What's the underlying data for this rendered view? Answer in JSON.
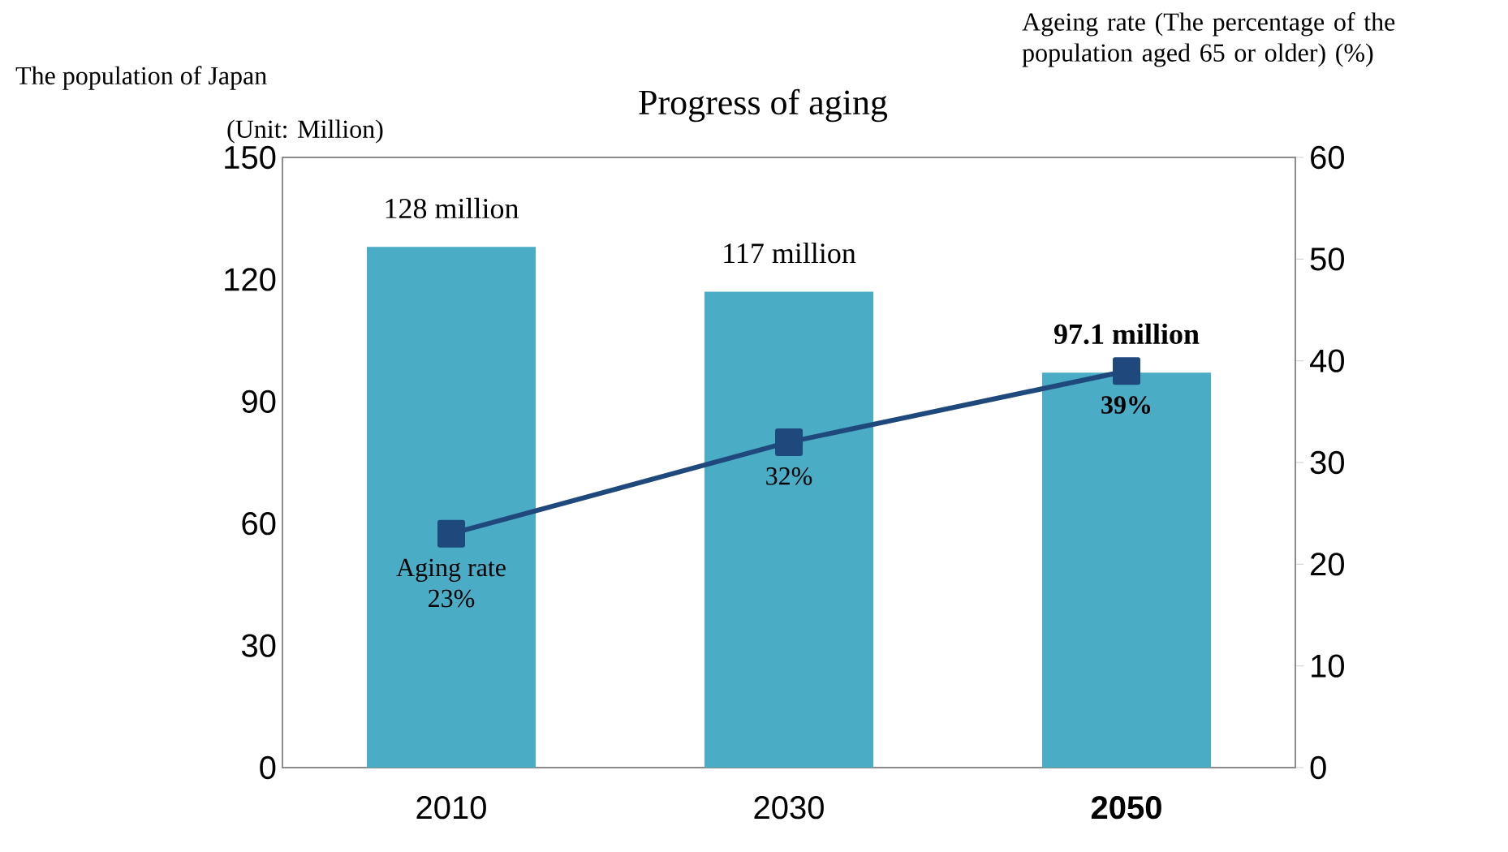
{
  "chart_data": {
    "type": "bar",
    "title": "Progress of aging",
    "ylabel": "The population of Japan",
    "y2label": "Ageing rate (The percentage of the population aged 65 or older) (%)",
    "annotations": [
      "(Unit: Million)"
    ],
    "categories": [
      "2010",
      "2030",
      "**2050**"
    ],
    "series": [
      {
        "color": "#4bacc6",
        "values": [
          128,
          117,
          97.1
        ],
        "value_labels": [
          "128 million",
          "117 million",
          "**97.1 million**"
        ]
      },
      {
        "type": "line",
        "name": "Aging rate",
        "axis": "y2",
        "color": "#1f497d",
        "marker": "square",
        "values": [
          23,
          32,
          39
        ],
        "value_labels": [
          "23%",
          "32%",
          "**39%**"
        ]
      }
    ],
    "ylim": [
      0,
      150
    ],
    "yticks": [
      0,
      30,
      60,
      90,
      120,
      150
    ],
    "y2lim": [
      0,
      60
    ],
    "y2ticks": [
      0,
      10,
      20,
      30,
      40,
      50,
      60
    ]
  }
}
